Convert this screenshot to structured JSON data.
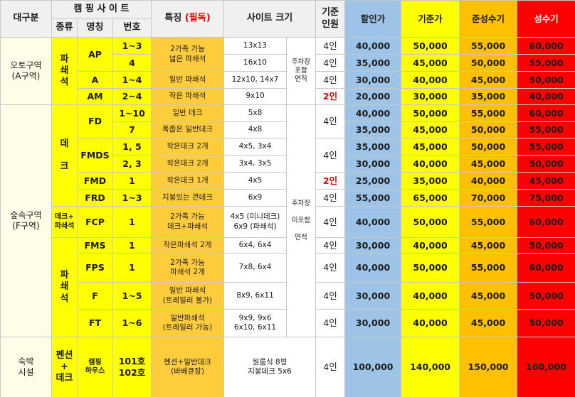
{
  "header": {
    "division": "대구분",
    "campsite": "캠 핑 사 이 트",
    "kind": "종류",
    "name": "명칭",
    "number": "번호",
    "feature": "특징",
    "feature_note": "(필독)",
    "size": "사이트 크기",
    "capacity": "기준\n인원",
    "prices": [
      "할인가",
      "기준가",
      "준성수기",
      "성수기"
    ]
  },
  "rows": [
    {
      "division": "오토구역\n(A구역)",
      "kind": "파\n쇄\n석",
      "name": "AP",
      "number": "1~3",
      "feature": "2가족 가능\n넓은 파쇄석",
      "size": "13x13",
      "parking": "주차장\n포함\n면적",
      "capacity": "4인",
      "prices": [
        "40,000",
        "50,000",
        "55,000",
        "60,000"
      ]
    },
    {
      "number": "4",
      "size": "16x10",
      "capacity": "4인",
      "prices": [
        "35,000",
        "45,000",
        "50,000",
        "55,000"
      ]
    },
    {
      "name": "A",
      "number": "1~4",
      "feature": "일반 파쇄석",
      "size": "12x10, 14x7",
      "capacity": "4인",
      "prices": [
        "30,000",
        "40,000",
        "45,000",
        "50,000"
      ]
    },
    {
      "name": "AM",
      "number": "2~4",
      "feature": "작은 파쇄석",
      "size": "9x10",
      "capacity": "2인",
      "prices": [
        "20,000",
        "30,000",
        "35,000",
        "40,000"
      ]
    },
    {
      "division": "숲속구역\n(F구역)",
      "kind": "데\n\n크",
      "name": "FD",
      "number": "1~10",
      "feature": "일반 데크",
      "size": "5x8",
      "parking": "주차장\n\n미포함\n\n면적",
      "capacity": "4인",
      "prices": [
        "40,000",
        "50,000",
        "55,000",
        "60,000"
      ]
    },
    {
      "number": "7",
      "feature": "폭좁은 일반데크",
      "size": "4x8",
      "prices": [
        "35,000",
        "45,000",
        "50,000",
        "55,000"
      ]
    },
    {
      "name": "FMDS",
      "number": "1, 5",
      "feature": "작은데크 2개",
      "size": "4x5, 3x4",
      "capacity": "4인",
      "prices": [
        "35,000",
        "45,000",
        "50,000",
        "55,000"
      ]
    },
    {
      "number": "2, 3",
      "feature": "작은데크 2개",
      "size": "3x4, 3x5",
      "prices": [
        "30,000",
        "40,000",
        "45,000",
        "50,000"
      ]
    },
    {
      "name": "FMD",
      "number": "1",
      "feature": "작은데크 1개",
      "size": "4x5",
      "capacity": "2인",
      "prices": [
        "25,000",
        "35,000",
        "40,000",
        "45,000"
      ]
    },
    {
      "name": "FRD",
      "number": "1~3",
      "feature": "지붕있는 큰데크",
      "size": "6x9",
      "capacity": "4인",
      "prices": [
        "55,000",
        "65,000",
        "70,000",
        "75,000"
      ]
    },
    {
      "kind": "데크+\n파쇄석",
      "name": "FCP",
      "number": "1",
      "feature": "2가족 가능\n데크+파쇄석",
      "size": "4x5 (미니데크)\n6x9 (파쇄석)",
      "capacity": "4인",
      "prices": [
        "40,000",
        "50,000",
        "55,000",
        "60,000"
      ]
    },
    {
      "kind": "파\n쇄\n석",
      "name": "FMS",
      "number": "1",
      "feature": "작은파쇄석 2개",
      "size": "6x4, 6x4",
      "capacity": "4인",
      "prices": [
        "30,000",
        "40,000",
        "45,000",
        "50,000"
      ]
    },
    {
      "name": "FPS",
      "number": "1",
      "feature": "2가족 가능\n파쇄석 2개",
      "size": "7x8, 6x4",
      "capacity": "4인",
      "prices": [
        "40,000",
        "50,000",
        "55,000",
        "60,000"
      ]
    },
    {
      "name": "F",
      "number": "1~5",
      "feature": "일반 파쇄석\n(트레일러 불가)",
      "size": "8x9, 6x11",
      "capacity": "4인",
      "prices": [
        "30,000",
        "40,000",
        "45,000",
        "50,000"
      ]
    },
    {
      "name": "FT",
      "number": "1~6",
      "feature": "일반파쇄석\n(트레일러 가능)",
      "size": "9x9, 9x6\n6x10, 6x11",
      "capacity": "4인",
      "prices": [
        "30,000",
        "40,000",
        "45,000",
        "50,000"
      ]
    },
    {
      "division": "숙박\n시설",
      "kind": "펜션\n+\n데크",
      "name": "캠핑\n하우스",
      "number": "101호\n102호",
      "feature": "펜션+일반데크\n(바베큐장)",
      "size": "원룸식 8평\n지붕데크 5x6",
      "capacity": "4인",
      "prices": [
        "100,000",
        "140,000",
        "150,000",
        "160,000"
      ]
    }
  ]
}
